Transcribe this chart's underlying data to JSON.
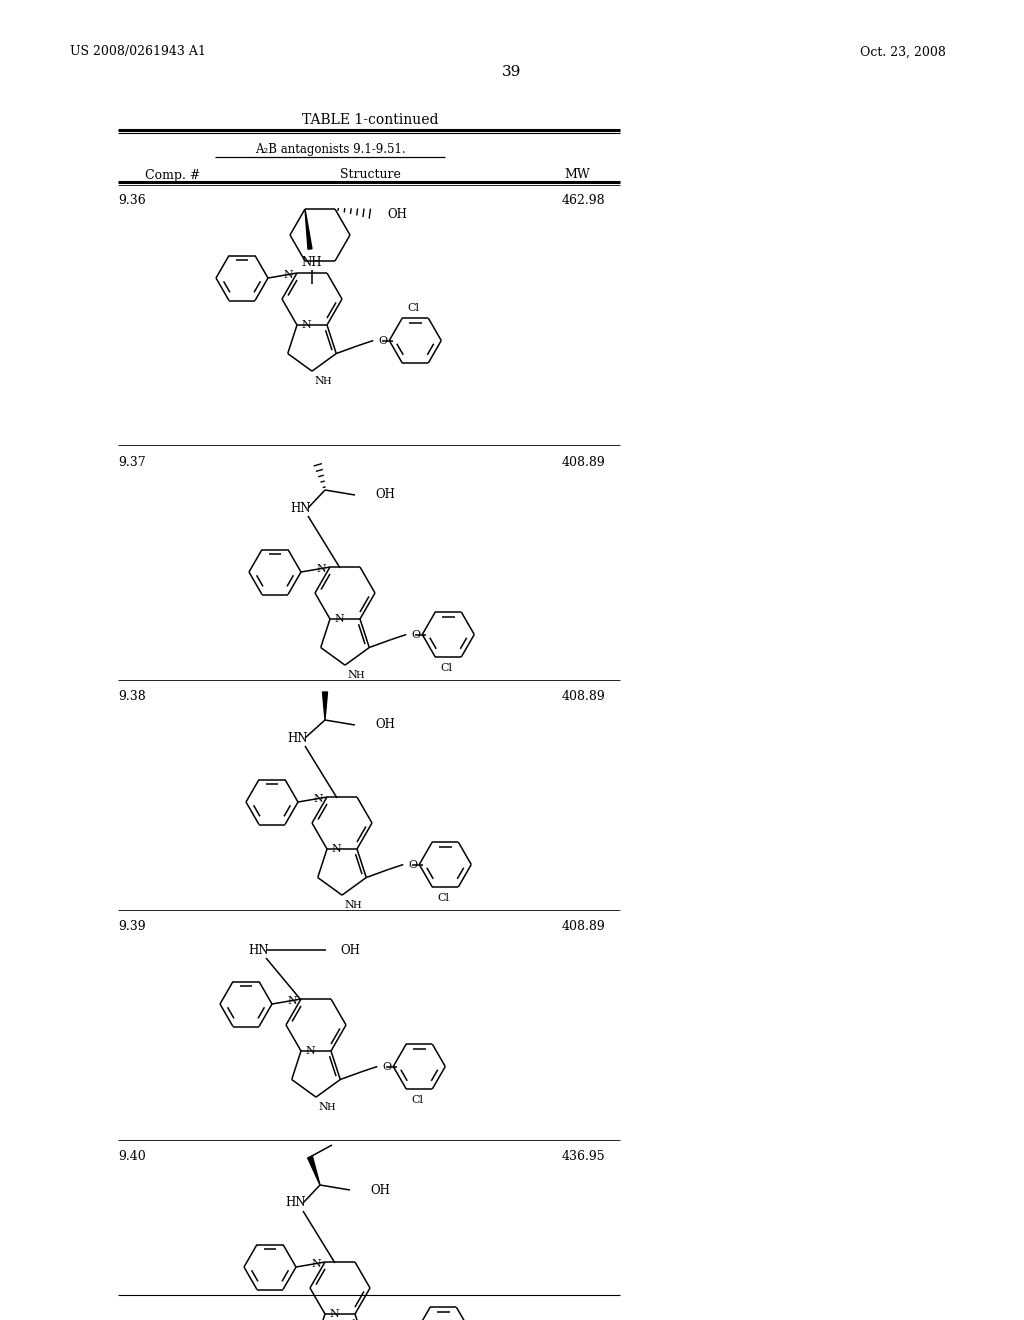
{
  "page_number": "39",
  "patent_number": "US 2008/0261943 A1",
  "patent_date": "Oct. 23, 2008",
  "table_title": "TABLE 1-continued",
  "table_subtitle": "A₂B antagonists 9.1-9.51.",
  "col_comp": "Comp. #",
  "col_struct": "Structure",
  "col_mw": "MW",
  "compounds": [
    {
      "id": "9.36",
      "mw": "462.98"
    },
    {
      "id": "9.37",
      "mw": "408.89"
    },
    {
      "id": "9.38",
      "mw": "408.89"
    },
    {
      "id": "9.39",
      "mw": "408.89"
    },
    {
      "id": "9.40",
      "mw": "436.95"
    }
  ],
  "bg_color": "#ffffff",
  "text_color": "#000000"
}
